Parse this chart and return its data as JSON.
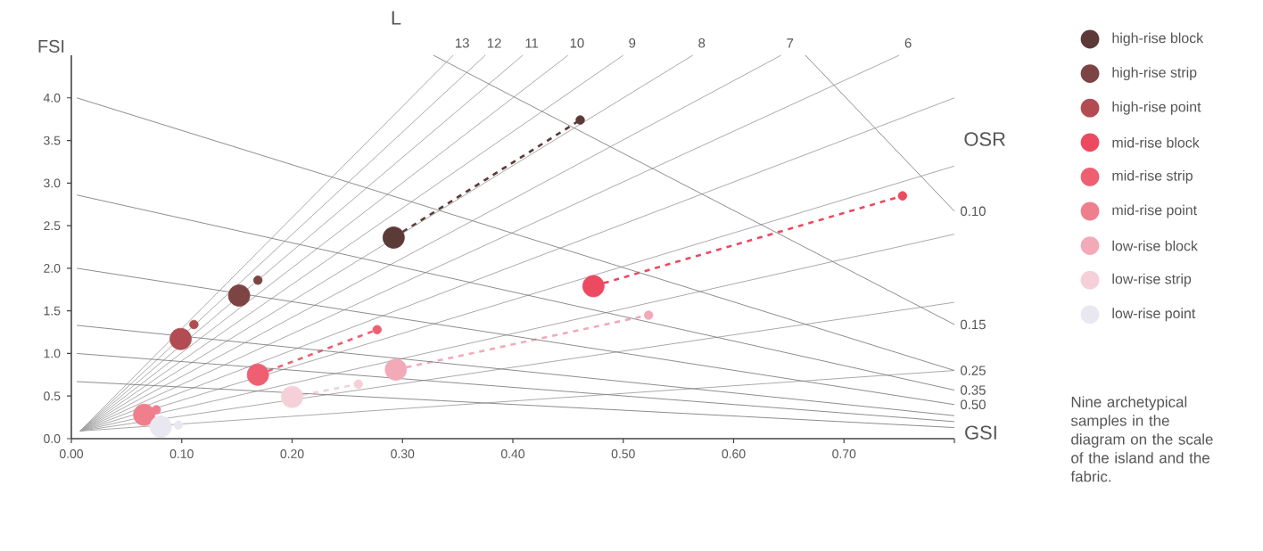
{
  "chart_data": {
    "type": "bubble",
    "xlabel": "GSI",
    "ylabel": "FSI",
    "xlim": [
      0,
      0.8
    ],
    "ylim": [
      0,
      4.5
    ],
    "xticks": [
      {
        "value": 0,
        "label": "0.00"
      },
      {
        "value": 0.1,
        "label": "0.10"
      },
      {
        "value": 0.2,
        "label": "0.20"
      },
      {
        "value": 0.3,
        "label": "0.30"
      },
      {
        "value": 0.4,
        "label": "0.40"
      },
      {
        "value": 0.5,
        "label": "0.50"
      },
      {
        "value": 0.6,
        "label": "0.60"
      },
      {
        "value": 0.7,
        "label": "0.70"
      },
      {
        "value": 0.8,
        "label": null
      }
    ],
    "yticks": [
      {
        "value": 0,
        "label": "0.0"
      },
      {
        "value": 0.5,
        "label": "0.5"
      },
      {
        "value": 1,
        "label": "1.0"
      },
      {
        "value": 1.5,
        "label": "1.5"
      },
      {
        "value": 2,
        "label": "2.0"
      },
      {
        "value": 2.5,
        "label": "2.5"
      },
      {
        "value": 3,
        "label": "3.0"
      },
      {
        "value": 3.5,
        "label": "3.5"
      },
      {
        "value": 4,
        "label": "4.0"
      }
    ],
    "legend": "right",
    "annotations": [
      "L",
      "OSR",
      "Nine archetypical samples in the diagram on the scale of the island and the fabric."
    ],
    "series": [
      {
        "name": "high-rise block",
        "color": "#5c3a38",
        "x": [
          0.292,
          0.461
        ],
        "values": [
          2.36,
          3.74
        ],
        "sizes": [
          1,
          0.16
        ]
      },
      {
        "name": "high-rise strip",
        "color": "#7d4444",
        "x": [
          0.152,
          0.169
        ],
        "values": [
          1.68,
          1.86
        ],
        "sizes": [
          1,
          0.16
        ]
      },
      {
        "name": "high-rise point",
        "color": "#b24c52",
        "x": [
          0.099,
          0.111
        ],
        "values": [
          1.17,
          1.34
        ],
        "sizes": [
          1,
          0.16
        ]
      },
      {
        "name": "mid-rise block",
        "color": "#ec4a60",
        "x": [
          0.473,
          0.753
        ],
        "values": [
          1.79,
          2.85
        ],
        "sizes": [
          1,
          0.16
        ]
      },
      {
        "name": "mid-rise strip",
        "color": "#ef5f72",
        "x": [
          0.169,
          0.277
        ],
        "values": [
          0.75,
          1.28
        ],
        "sizes": [
          1,
          0.16
        ]
      },
      {
        "name": "mid-rise point",
        "color": "#f07f8e",
        "x": [
          0.066,
          0.077
        ],
        "values": [
          0.28,
          0.34
        ],
        "sizes": [
          1,
          0.16
        ]
      },
      {
        "name": "low-rise block",
        "color": "#f2aab9",
        "x": [
          0.294,
          0.523
        ],
        "values": [
          0.81,
          1.45
        ],
        "sizes": [
          1,
          0.16
        ]
      },
      {
        "name": "low-rise strip",
        "color": "#f5d0d8",
        "x": [
          0.2,
          0.26
        ],
        "values": [
          0.49,
          0.64
        ],
        "sizes": [
          1,
          0.16
        ]
      },
      {
        "name": "low-rise point",
        "color": "#e9e7f0",
        "x": [
          0.081,
          0.097
        ],
        "values": [
          0.14,
          0.16
        ],
        "sizes": [
          1,
          0.16
        ]
      },
      {
        "type": "line",
        "color": "#5c3a38",
        "x": [
          0.292,
          0.461
        ],
        "values": [
          2.36,
          3.74
        ],
        "line_style": "dashed"
      },
      {
        "type": "line",
        "color": "#ec4a60",
        "x": [
          0.473,
          0.753
        ],
        "values": [
          1.79,
          2.85
        ],
        "line_style": "dashed"
      },
      {
        "type": "line",
        "color": "#ef5f72",
        "x": [
          0.169,
          0.277
        ],
        "values": [
          0.75,
          1.28
        ],
        "line_style": "dashed"
      },
      {
        "type": "line",
        "color": "#f2aab9",
        "x": [
          0.294,
          0.523
        ],
        "values": [
          0.81,
          1.45
        ],
        "line_style": "dashed"
      },
      {
        "type": "line",
        "color": "#f5d0d8",
        "x": [
          0.2,
          0.26
        ],
        "values": [
          0.49,
          0.64
        ],
        "line_style": "dashed"
      },
      {
        "name": "13",
        "type": "line",
        "color": "#a0a0a0",
        "x": [
          0.008,
          0.346
        ],
        "values": [
          0.09,
          4.5
        ]
      },
      {
        "name": "12",
        "type": "line",
        "color": "#a0a0a0",
        "x": [
          0.008,
          0.375
        ],
        "values": [
          0.09,
          4.5
        ]
      },
      {
        "name": "11",
        "type": "line",
        "color": "#a0a0a0",
        "x": [
          0.008,
          0.409
        ],
        "values": [
          0.09,
          4.5
        ]
      },
      {
        "name": "10",
        "type": "line",
        "color": "#a0a0a0",
        "x": [
          0.008,
          0.45
        ],
        "values": [
          0.09,
          4.5
        ]
      },
      {
        "name": "9",
        "type": "line",
        "color": "#a0a0a0",
        "x": [
          0.008,
          0.5
        ],
        "values": [
          0.09,
          4.5
        ]
      },
      {
        "name": "8",
        "type": "line",
        "color": "#a0a0a0",
        "x": [
          0.008,
          0.563
        ],
        "values": [
          0.09,
          4.5
        ]
      },
      {
        "name": "7",
        "type": "line",
        "color": "#a0a0a0",
        "x": [
          0.008,
          0.643
        ],
        "values": [
          0.09,
          4.5
        ]
      },
      {
        "name": "6",
        "type": "line",
        "color": "#a0a0a0",
        "x": [
          0.008,
          0.75
        ],
        "values": [
          0.09,
          4.5
        ]
      },
      {
        "type": "line",
        "color": "#a0a0a0",
        "x": [
          0.008,
          0.8
        ],
        "values": [
          0.09,
          4.0
        ]
      },
      {
        "type": "line",
        "color": "#a0a0a0",
        "x": [
          0.008,
          0.8
        ],
        "values": [
          0.09,
          3.2
        ]
      },
      {
        "type": "line",
        "color": "#a0a0a0",
        "x": [
          0.008,
          0.8
        ],
        "values": [
          0.09,
          2.4
        ]
      },
      {
        "type": "line",
        "color": "#a0a0a0",
        "x": [
          0.008,
          0.8
        ],
        "values": [
          0.09,
          1.6
        ]
      },
      {
        "type": "line",
        "color": "#a0a0a0",
        "x": [
          0.008,
          0.8
        ],
        "values": [
          0.09,
          0.8
        ]
      },
      {
        "name": "0.10",
        "type": "line",
        "color": "#808080",
        "x": [
          0.665,
          0.8
        ],
        "values": [
          4.5,
          2.67
        ]
      },
      {
        "name": "0.15",
        "type": "line",
        "color": "#808080",
        "x": [
          0.328,
          0.8
        ],
        "values": [
          4.5,
          1.34
        ]
      },
      {
        "name": "0.25",
        "type": "line",
        "color": "#808080",
        "x": [
          0.005,
          0.8
        ],
        "values": [
          4.0,
          0.8
        ]
      },
      {
        "name": "0.35",
        "type": "line",
        "color": "#808080",
        "x": [
          0.005,
          0.8
        ],
        "values": [
          2.86,
          0.57
        ]
      },
      {
        "name": "0.50",
        "type": "line",
        "color": "#808080",
        "x": [
          0.005,
          0.8
        ],
        "values": [
          2.0,
          0.4
        ]
      },
      {
        "type": "line",
        "color": "#808080",
        "x": [
          0.005,
          0.8
        ],
        "values": [
          1.33,
          0.27
        ]
      },
      {
        "type": "line",
        "color": "#808080",
        "x": [
          0.005,
          0.8
        ],
        "values": [
          1.0,
          0.2
        ]
      },
      {
        "type": "line",
        "color": "#808080",
        "x": [
          0.005,
          0.8
        ],
        "values": [
          0.67,
          0.13
        ]
      }
    ]
  }
}
